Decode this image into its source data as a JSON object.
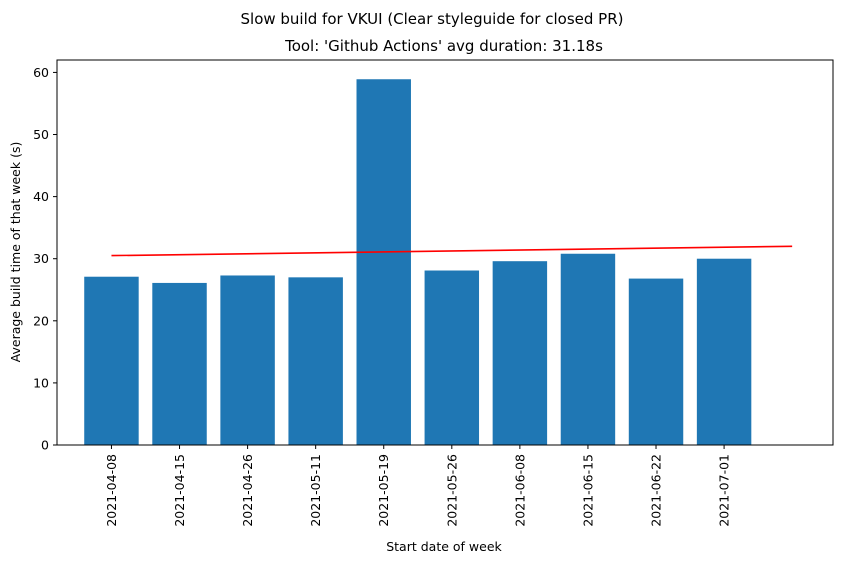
{
  "chart_data": {
    "type": "bar",
    "suptitle": "Slow build for VKUI (Clear styleguide for closed PR)",
    "title": "Tool: 'Github Actions' avg duration: 31.18s",
    "xlabel": "Start date of week",
    "ylabel": "Average build time of that week (s)",
    "categories": [
      "2021-04-08",
      "2021-04-15",
      "2021-04-26",
      "2021-05-11",
      "2021-05-19",
      "2021-05-26",
      "2021-06-08",
      "2021-06-15",
      "2021-06-22",
      "2021-07-01"
    ],
    "values": [
      27.1,
      26.1,
      27.3,
      27.0,
      58.9,
      28.1,
      29.6,
      30.8,
      26.8,
      30.0
    ],
    "ylim": [
      0,
      62
    ],
    "yticks": [
      0,
      10,
      20,
      30,
      40,
      50,
      60
    ],
    "bar_color": "#1f77b4",
    "trend_line": {
      "color": "#ff0000",
      "x_start": 0,
      "x_end": 10,
      "y_start": 30.5,
      "y_end": 32.0
    },
    "grid": false,
    "legend": "none"
  }
}
